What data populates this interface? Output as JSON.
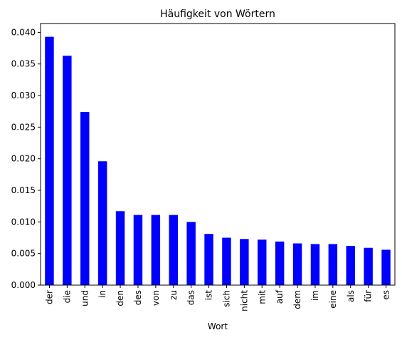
{
  "chart_data": {
    "type": "bar",
    "title": "Häufigkeit von Wörtern",
    "xlabel": "Wort",
    "ylabel": "",
    "ylim": [
      0,
      0.0414
    ],
    "yticks": [
      "0.000",
      "0.005",
      "0.010",
      "0.015",
      "0.020",
      "0.025",
      "0.030",
      "0.035",
      "0.040"
    ],
    "ytick_values": [
      0,
      0.005,
      0.01,
      0.015,
      0.02,
      0.025,
      0.03,
      0.035,
      0.04
    ],
    "categories": [
      "der",
      "die",
      "und",
      "in",
      "den",
      "des",
      "von",
      "zu",
      "das",
      "ist",
      "sich",
      "nicht",
      "mit",
      "auf",
      "dem",
      "im",
      "eine",
      "als",
      "für",
      "es"
    ],
    "values": [
      0.0393,
      0.0363,
      0.0274,
      0.0196,
      0.0117,
      0.0111,
      0.0111,
      0.0111,
      0.01,
      0.0081,
      0.0075,
      0.0073,
      0.0072,
      0.0069,
      0.0066,
      0.0065,
      0.0065,
      0.0062,
      0.0059,
      0.0056
    ],
    "bar_color": "#0000ff",
    "grid": false,
    "legend": "none"
  }
}
